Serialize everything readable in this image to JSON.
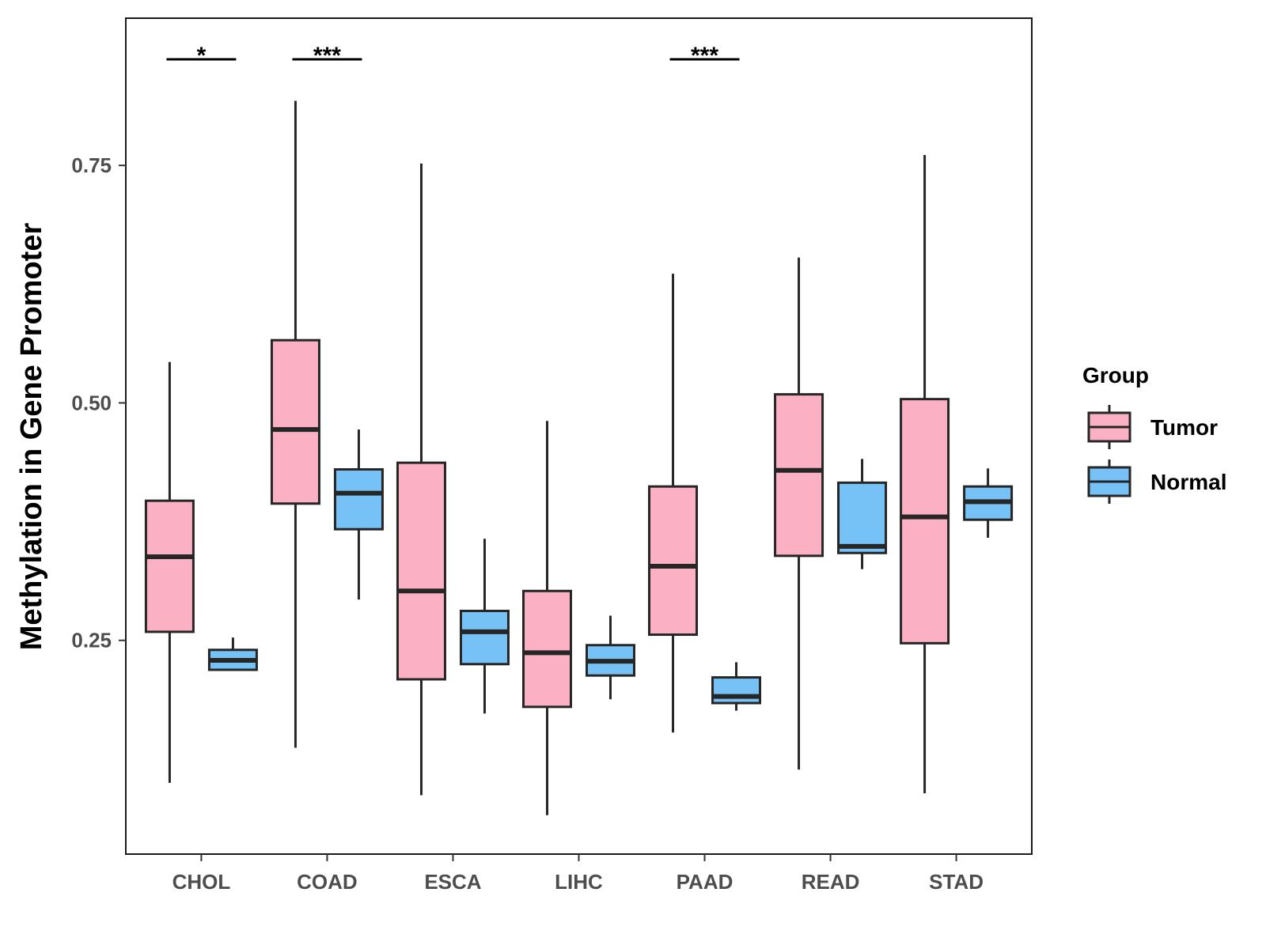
{
  "chart_data": {
    "type": "boxplot",
    "title": "",
    "xlabel": "",
    "ylabel": "Methylation in Gene Promoter",
    "ylim": [
      0.025,
      0.905
    ],
    "yticks": [
      0.25,
      0.5,
      0.75
    ],
    "ytick_labels": [
      "0.25",
      "0.50",
      "0.75"
    ],
    "categories": [
      "CHOL",
      "COAD",
      "ESCA",
      "LIHC",
      "PAAD",
      "READ",
      "STAD"
    ],
    "legend": {
      "title": "Group",
      "position": "right",
      "entries": [
        {
          "name": "Tumor",
          "color": "#FBB1C3"
        },
        {
          "name": "Normal",
          "color": "#76C1F5"
        }
      ]
    },
    "series": [
      {
        "name": "Tumor",
        "color": "#FBB1C3",
        "boxes": [
          {
            "min": 0.1,
            "q1": 0.259,
            "median": 0.338,
            "q3": 0.397,
            "max": 0.543
          },
          {
            "min": 0.137,
            "q1": 0.394,
            "median": 0.472,
            "q3": 0.566,
            "max": 0.818
          },
          {
            "min": 0.087,
            "q1": 0.209,
            "median": 0.302,
            "q3": 0.437,
            "max": 0.752
          },
          {
            "min": 0.066,
            "q1": 0.18,
            "median": 0.237,
            "q3": 0.302,
            "max": 0.481
          },
          {
            "min": 0.153,
            "q1": 0.256,
            "median": 0.328,
            "q3": 0.412,
            "max": 0.636
          },
          {
            "min": 0.114,
            "q1": 0.339,
            "median": 0.429,
            "q3": 0.509,
            "max": 0.653
          },
          {
            "min": 0.089,
            "q1": 0.247,
            "median": 0.38,
            "q3": 0.504,
            "max": 0.761
          }
        ]
      },
      {
        "name": "Normal",
        "color": "#76C1F5",
        "boxes": [
          {
            "min": 0.219,
            "q1": 0.219,
            "median": 0.229,
            "q3": 0.24,
            "max": 0.253
          },
          {
            "min": 0.293,
            "q1": 0.367,
            "median": 0.405,
            "q3": 0.43,
            "max": 0.472
          },
          {
            "min": 0.173,
            "q1": 0.225,
            "median": 0.259,
            "q3": 0.281,
            "max": 0.357
          },
          {
            "min": 0.188,
            "q1": 0.213,
            "median": 0.228,
            "q3": 0.245,
            "max": 0.276
          },
          {
            "min": 0.176,
            "q1": 0.184,
            "median": 0.191,
            "q3": 0.211,
            "max": 0.227
          },
          {
            "min": 0.325,
            "q1": 0.342,
            "median": 0.349,
            "q3": 0.416,
            "max": 0.441
          },
          {
            "min": 0.358,
            "q1": 0.377,
            "median": 0.396,
            "q3": 0.412,
            "max": 0.431
          }
        ]
      }
    ],
    "annotations": [
      {
        "category": "CHOL",
        "label": "*"
      },
      {
        "category": "COAD",
        "label": "***"
      },
      {
        "category": "PAAD",
        "label": "***"
      }
    ]
  }
}
